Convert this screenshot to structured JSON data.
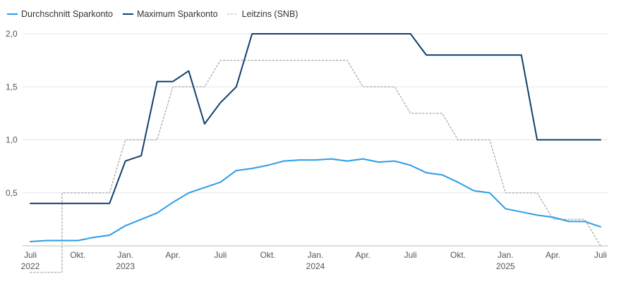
{
  "chart_data": {
    "type": "line",
    "title": "",
    "xlabel": "",
    "ylabel": "",
    "ylim": [
      0,
      2.1
    ],
    "xlim": [
      "2022-06",
      "2025-07"
    ],
    "x_ticks": [
      {
        "date": "2022-07",
        "month": "Juli",
        "year": "2022"
      },
      {
        "date": "2022-10",
        "month": "Okt.",
        "year": ""
      },
      {
        "date": "2023-01",
        "month": "Jan.",
        "year": "2023"
      },
      {
        "date": "2023-04",
        "month": "Apr.",
        "year": ""
      },
      {
        "date": "2023-07",
        "month": "Juli",
        "year": ""
      },
      {
        "date": "2023-10",
        "month": "Okt.",
        "year": ""
      },
      {
        "date": "2024-01",
        "month": "Jan.",
        "year": "2024"
      },
      {
        "date": "2024-04",
        "month": "Apr.",
        "year": ""
      },
      {
        "date": "2024-07",
        "month": "Juli",
        "year": ""
      },
      {
        "date": "2024-10",
        "month": "Okt.",
        "year": ""
      },
      {
        "date": "2025-01",
        "month": "Jan.",
        "year": "2025"
      },
      {
        "date": "2025-04",
        "month": "Apr.",
        "year": ""
      },
      {
        "date": "2025-07",
        "month": "Juli",
        "year": ""
      }
    ],
    "y_ticks": [
      {
        "value": 0.5,
        "label": "0,5"
      },
      {
        "value": 1.0,
        "label": "1,0"
      },
      {
        "value": 1.5,
        "label": "1,5"
      },
      {
        "value": 2.0,
        "label": "2,0"
      }
    ],
    "grid": true,
    "legend_position": "top-left",
    "series": [
      {
        "name": "Durchschnitt Sparkonto",
        "color": "#2a9de6",
        "style": "solid",
        "points": [
          [
            "2022-07",
            0.04
          ],
          [
            "2022-08",
            0.05
          ],
          [
            "2022-09",
            0.05
          ],
          [
            "2022-10",
            0.05
          ],
          [
            "2022-11",
            0.08
          ],
          [
            "2022-12",
            0.1
          ],
          [
            "2023-01",
            0.19
          ],
          [
            "2023-02",
            0.25
          ],
          [
            "2023-03",
            0.31
          ],
          [
            "2023-04",
            0.41
          ],
          [
            "2023-05",
            0.5
          ],
          [
            "2023-06",
            0.55
          ],
          [
            "2023-07",
            0.6
          ],
          [
            "2023-08",
            0.71
          ],
          [
            "2023-09",
            0.73
          ],
          [
            "2023-10",
            0.76
          ],
          [
            "2023-11",
            0.8
          ],
          [
            "2023-12",
            0.81
          ],
          [
            "2024-01",
            0.81
          ],
          [
            "2024-02",
            0.82
          ],
          [
            "2024-03",
            0.8
          ],
          [
            "2024-04",
            0.82
          ],
          [
            "2024-05",
            0.79
          ],
          [
            "2024-06",
            0.8
          ],
          [
            "2024-07",
            0.76
          ],
          [
            "2024-08",
            0.69
          ],
          [
            "2024-09",
            0.67
          ],
          [
            "2024-10",
            0.6
          ],
          [
            "2024-11",
            0.52
          ],
          [
            "2024-12",
            0.5
          ],
          [
            "2025-01",
            0.35
          ],
          [
            "2025-02",
            0.32
          ],
          [
            "2025-03",
            0.29
          ],
          [
            "2025-04",
            0.27
          ],
          [
            "2025-05",
            0.23
          ],
          [
            "2025-06",
            0.23
          ],
          [
            "2025-07",
            0.18
          ]
        ]
      },
      {
        "name": "Maximum Sparkonto",
        "color": "#123f6e",
        "style": "solid",
        "points": [
          [
            "2022-07",
            0.4
          ],
          [
            "2022-08",
            0.4
          ],
          [
            "2022-09",
            0.4
          ],
          [
            "2022-10",
            0.4
          ],
          [
            "2022-11",
            0.4
          ],
          [
            "2022-12",
            0.4
          ],
          [
            "2023-01",
            0.8
          ],
          [
            "2023-02",
            0.85
          ],
          [
            "2023-03",
            1.55
          ],
          [
            "2023-04",
            1.55
          ],
          [
            "2023-05",
            1.65
          ],
          [
            "2023-06",
            1.15
          ],
          [
            "2023-07",
            1.35
          ],
          [
            "2023-08",
            1.5
          ],
          [
            "2023-09",
            2.0
          ],
          [
            "2023-10",
            2.0
          ],
          [
            "2023-11",
            2.0
          ],
          [
            "2023-12",
            2.0
          ],
          [
            "2024-01",
            2.0
          ],
          [
            "2024-02",
            2.0
          ],
          [
            "2024-03",
            2.0
          ],
          [
            "2024-04",
            2.0
          ],
          [
            "2024-05",
            2.0
          ],
          [
            "2024-06",
            2.0
          ],
          [
            "2024-07",
            2.0
          ],
          [
            "2024-08",
            1.8
          ],
          [
            "2024-09",
            1.8
          ],
          [
            "2024-10",
            1.8
          ],
          [
            "2024-11",
            1.8
          ],
          [
            "2024-12",
            1.8
          ],
          [
            "2025-01",
            1.8
          ],
          [
            "2025-02",
            1.8
          ],
          [
            "2025-03",
            1.0
          ],
          [
            "2025-04",
            1.0
          ],
          [
            "2025-05",
            1.0
          ],
          [
            "2025-06",
            1.0
          ],
          [
            "2025-07",
            1.0
          ]
        ]
      },
      {
        "name": "Leitzins (SNB)",
        "color": "#b5b5b5",
        "style": "dotted",
        "points": [
          [
            "2022-07",
            -0.25
          ],
          [
            "2022-08",
            -0.25
          ],
          [
            "2022-09",
            -0.25
          ],
          [
            "2022-09",
            0.5
          ],
          [
            "2022-10",
            0.5
          ],
          [
            "2022-11",
            0.5
          ],
          [
            "2022-12",
            0.5
          ],
          [
            "2023-01",
            1.0
          ],
          [
            "2023-02",
            1.0
          ],
          [
            "2023-03",
            1.0
          ],
          [
            "2023-04",
            1.5
          ],
          [
            "2023-05",
            1.5
          ],
          [
            "2023-06",
            1.5
          ],
          [
            "2023-07",
            1.75
          ],
          [
            "2023-08",
            1.75
          ],
          [
            "2023-09",
            1.75
          ],
          [
            "2023-10",
            1.75
          ],
          [
            "2023-11",
            1.75
          ],
          [
            "2023-12",
            1.75
          ],
          [
            "2024-01",
            1.75
          ],
          [
            "2024-02",
            1.75
          ],
          [
            "2024-03",
            1.75
          ],
          [
            "2024-04",
            1.5
          ],
          [
            "2024-05",
            1.5
          ],
          [
            "2024-06",
            1.5
          ],
          [
            "2024-07",
            1.25
          ],
          [
            "2024-08",
            1.25
          ],
          [
            "2024-09",
            1.25
          ],
          [
            "2024-10",
            1.0
          ],
          [
            "2024-11",
            1.0
          ],
          [
            "2024-12",
            1.0
          ],
          [
            "2025-01",
            0.5
          ],
          [
            "2025-02",
            0.5
          ],
          [
            "2025-03",
            0.5
          ],
          [
            "2025-04",
            0.25
          ],
          [
            "2025-05",
            0.25
          ],
          [
            "2025-06",
            0.25
          ],
          [
            "2025-07",
            0.0
          ]
        ]
      }
    ]
  }
}
